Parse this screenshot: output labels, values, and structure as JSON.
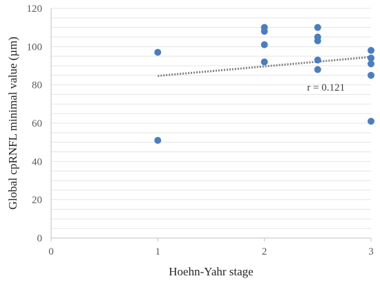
{
  "chart_data": {
    "type": "scatter",
    "xlabel": "Hoehn-Yahr stage",
    "ylabel": "Global cpRNFL minimal value (µm)",
    "xlim": [
      0,
      3
    ],
    "ylim": [
      0,
      120
    ],
    "x_ticks": [
      0,
      1,
      2,
      3
    ],
    "y_ticks": [
      0,
      20,
      40,
      60,
      80,
      100,
      120
    ],
    "grid": "horizontal",
    "points": [
      {
        "x": 1,
        "y": 97
      },
      {
        "x": 1,
        "y": 51
      },
      {
        "x": 2,
        "y": 110
      },
      {
        "x": 2,
        "y": 108
      },
      {
        "x": 2,
        "y": 101
      },
      {
        "x": 2,
        "y": 92
      },
      {
        "x": 2.5,
        "y": 110
      },
      {
        "x": 2.5,
        "y": 105
      },
      {
        "x": 2.5,
        "y": 103
      },
      {
        "x": 2.5,
        "y": 93
      },
      {
        "x": 2.5,
        "y": 88
      },
      {
        "x": 3,
        "y": 98
      },
      {
        "x": 3,
        "y": 94
      },
      {
        "x": 3,
        "y": 91
      },
      {
        "x": 3,
        "y": 85
      },
      {
        "x": 3,
        "y": 61
      }
    ],
    "trendline": {
      "x": [
        1,
        3
      ],
      "y": [
        84.7,
        94.6
      ]
    },
    "annotation": "r = 0.121",
    "annotation_at": {
      "x": 2.4,
      "y": 77
    },
    "colors": {
      "points": "#4a7ebf",
      "trendline": "#7f7f7f",
      "grid": "#e4e4e4",
      "axis": "#bfbfbf"
    }
  }
}
